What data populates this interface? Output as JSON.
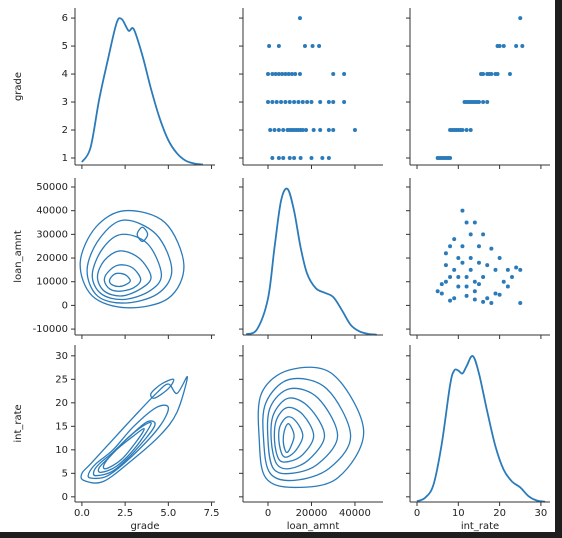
{
  "chart_data": {
    "type": "pairplot",
    "color": "#2b7bba",
    "axes": [
      {
        "label": "grade",
        "xlim": [
          -0.4,
          7.7
        ],
        "xticks": [
          {
            "value": 0,
            "label": "0.0"
          },
          {
            "value": 2.5,
            "label": "2.5"
          },
          {
            "value": 5,
            "label": "5.0"
          },
          {
            "value": 7.5,
            "label": "7.5"
          }
        ],
        "ylim": [
          0.75,
          6.36
        ],
        "yticks": [
          1,
          2,
          3,
          4,
          5,
          6
        ]
      },
      {
        "label": "loan_amnt",
        "xlim": [
          -11500,
          52900
        ],
        "xticks": [
          0,
          20000,
          40000
        ],
        "ylim": [
          -12500,
          53800
        ],
        "yticks": [
          -10000,
          0,
          10000,
          20000,
          30000,
          40000,
          50000
        ]
      },
      {
        "label": "int_rate",
        "xlim": [
          -1.7,
          32.2
        ],
        "xticks": [
          0,
          10,
          20,
          30
        ],
        "ylim": [
          -1.1,
          32.3
        ],
        "yticks": [
          0,
          5,
          10,
          15,
          20,
          25,
          30
        ]
      }
    ],
    "panels": [
      [
        {
          "kind": "kde",
          "x": [
            0,
            0.5,
            1,
            1.5,
            2,
            2.3,
            2.7,
            3,
            3.5,
            4,
            4.5,
            5,
            5.5,
            6,
            6.5,
            7
          ],
          "density": [
            0.02,
            0.12,
            0.45,
            0.72,
            0.97,
            1.0,
            0.92,
            0.93,
            0.75,
            0.52,
            0.32,
            0.17,
            0.08,
            0.03,
            0.01,
            0.003
          ]
        },
        {
          "kind": "scatter",
          "x": [
            14700,
            500,
            5000,
            17000,
            20500,
            23500,
            0,
            2000,
            3500,
            5000,
            6500,
            8000,
            9500,
            11000,
            12500,
            14700,
            30000,
            35000,
            0,
            2000,
            4000,
            6000,
            8000,
            10000,
            12000,
            14000,
            16000,
            18000,
            20000,
            24000,
            28000,
            30000,
            35000,
            1000,
            3000,
            5000,
            7000,
            9000,
            10000,
            11000,
            12000,
            13000,
            14000,
            15000,
            16000,
            17500,
            21000,
            24000,
            28000,
            30000,
            40000,
            2000,
            5000,
            7000,
            10000,
            12000,
            15000,
            20000,
            25000,
            28000
          ],
          "y": [
            6,
            5,
            5,
            5,
            5,
            5,
            4,
            4,
            4,
            4,
            4,
            4,
            4,
            4,
            4,
            4,
            4,
            4,
            3,
            3,
            3,
            3,
            3,
            3,
            3,
            3,
            3,
            3,
            3,
            3,
            3,
            3,
            3,
            2,
            2,
            2,
            2,
            2,
            2,
            2,
            2,
            2,
            2,
            2,
            2,
            2,
            2,
            2,
            2,
            2,
            2,
            1,
            1,
            1,
            1,
            1,
            1,
            1,
            1,
            1
          ]
        },
        {
          "kind": "scatter",
          "x": [
            5,
            5.5,
            6,
            6.5,
            7,
            7.5,
            8,
            8,
            8.5,
            9,
            9.5,
            10,
            10.5,
            11,
            12,
            13,
            11.5,
            12,
            12.5,
            13,
            13.5,
            14,
            14.5,
            15,
            16,
            17,
            15.5,
            16,
            17,
            17.5,
            18,
            19,
            19.5,
            22.5,
            19.5,
            20,
            21,
            24,
            25.5,
            25
          ],
          "y": [
            1,
            1,
            1,
            1,
            1,
            1,
            1,
            2,
            2,
            2,
            2,
            2,
            2,
            2,
            2,
            2,
            3,
            3,
            3,
            3,
            3,
            3,
            3,
            3,
            3,
            3,
            4,
            4,
            4,
            4,
            4,
            4,
            4,
            4,
            5,
            5,
            5,
            5,
            5,
            6
          ]
        }
      ],
      [
        {
          "kind": "contour",
          "levels": [
            {
              "x": [
                5.9,
                4.8,
                2.5,
                0.8,
                -0.1,
                0.6,
                2.6,
                5.0
              ],
              "y": [
                17000,
                35000,
                40000,
                33000,
                18000,
                4000,
                -1000,
                3000
              ]
            },
            {
              "x": [
                5.2,
                4.3,
                2.4,
                1.0,
                0.3,
                0.9,
                2.5,
                4.4
              ],
              "y": [
                15000,
                30000,
                36000,
                28000,
                15000,
                4000,
                1000,
                5000
              ]
            },
            {
              "x": [
                4.6,
                3.8,
                2.3,
                1.2,
                0.6,
                1.1,
                2.4,
                3.9
              ],
              "y": [
                13000,
                26000,
                30000,
                24000,
                13000,
                5000,
                2500,
                6000
              ]
            },
            {
              "x": [
                4.0,
                3.3,
                2.2,
                1.3,
                0.9,
                1.3,
                2.3,
                3.4
              ],
              "y": [
                12000,
                20000,
                23000,
                19000,
                12000,
                6000,
                4000,
                7000
              ]
            },
            {
              "x": [
                3.4,
                2.9,
                2.1,
                1.5,
                1.3,
                1.6,
                2.2,
                3.0
              ],
              "y": [
                11000,
                16000,
                17000,
                14000,
                10500,
                7000,
                6000,
                7500
              ]
            },
            {
              "x": [
                2.8,
                2.5,
                2.0,
                1.7,
                1.6,
                1.8,
                2.2,
                2.6
              ],
              "y": [
                10500,
                13000,
                13500,
                12000,
                10000,
                8500,
                8000,
                9000
              ]
            },
            {
              "x": [
                3.8,
                3.5,
                3.2,
                3.5
              ],
              "y": [
                30000,
                33000,
                30000,
                27000
              ]
            }
          ]
        },
        {
          "kind": "kde",
          "x": [
            -10000,
            -5000,
            0,
            3000,
            6000,
            9000,
            12000,
            15000,
            18000,
            22000,
            26000,
            30000,
            34000,
            38000,
            42000,
            46000,
            50000
          ],
          "density": [
            0.005,
            0.04,
            0.25,
            0.6,
            0.92,
            1.0,
            0.85,
            0.6,
            0.42,
            0.32,
            0.29,
            0.26,
            0.17,
            0.07,
            0.025,
            0.008,
            0.002
          ]
        },
        {
          "kind": "scatter",
          "x": [
            8,
            6,
            7,
            9,
            11,
            12,
            14,
            15,
            13,
            10,
            16,
            18,
            20,
            22,
            24,
            25,
            25,
            17,
            19,
            21,
            10,
            12,
            13,
            14,
            15,
            16,
            11,
            9,
            8,
            7,
            6,
            5,
            9,
            12,
            14,
            16,
            18,
            20,
            22,
            23,
            17,
            19,
            13,
            11,
            10,
            15,
            14,
            12,
            8,
            7
          ],
          "y": [
            2000,
            5000,
            10000,
            28000,
            40000,
            35000,
            35000,
            25000,
            30000,
            20000,
            30000,
            24000,
            20000,
            15000,
            16000,
            15000,
            1000,
            3000,
            5000,
            10000,
            8000,
            12000,
            15000,
            6000,
            9000,
            12000,
            18000,
            15000,
            25000,
            22000,
            9000,
            6000,
            3000,
            4000,
            2500,
            1500,
            1000,
            4500,
            8000,
            12000,
            17000,
            15000,
            20000,
            25000,
            12000,
            18000,
            10000,
            8000,
            12000,
            17000
          ]
        }
      ],
      [
        {
          "kind": "contour",
          "levels": [
            {
              "x": [
                0.1,
                1.2,
                2.8,
                4.5,
                5.5,
                6.1,
                5.5,
                5.0,
                4.3,
                3.0,
                1.5,
                0.5,
                0.0
              ],
              "y": [
                3.5,
                3.2,
                7.5,
                13,
                18,
                25.5,
                22,
                24,
                22,
                17,
                11,
                7,
                5
              ]
            },
            {
              "x": [
                0.5,
                1.5,
                3.0,
                4.5,
                5.0,
                4.3,
                3.0,
                1.8,
                0.8,
                0.4
              ],
              "y": [
                4,
                4.5,
                9,
                15,
                19,
                19,
                15,
                10,
                7,
                5
              ]
            },
            {
              "x": [
                0.8,
                1.8,
                3.0,
                4.2,
                3.8,
                2.8,
                1.8,
                1.0,
                0.7
              ],
              "y": [
                4.5,
                5.5,
                9.5,
                15,
                16,
                13,
                9.5,
                7,
                5.5
              ]
            },
            {
              "x": [
                1.1,
                2.0,
                3.1,
                4.0,
                3.5,
                2.5,
                1.6,
                1.0
              ],
              "y": [
                5.2,
                6.5,
                10.5,
                15.5,
                15,
                12,
                8.5,
                6.2
              ]
            },
            {
              "x": [
                1.4,
                2.3,
                3.2,
                3.6,
                3.0,
                2.0,
                1.3
              ],
              "y": [
                6,
                8,
                12,
                14.5,
                13,
                10,
                7
              ]
            },
            {
              "x": [
                4.2,
                5.0,
                5.3,
                4.6,
                4.0
              ],
              "y": [
                21,
                23,
                25,
                24,
                22
              ]
            }
          ]
        },
        {
          "kind": "contour",
          "levels": [
            {
              "x": [
                44000,
                30000,
                10000,
                -3000,
                -4000,
                -1000,
                12000,
                32000
              ],
              "y": [
                14,
                26,
                27,
                22,
                12,
                4,
                2,
                4
              ]
            },
            {
              "x": [
                38000,
                27000,
                10000,
                -1000,
                -2000,
                1000,
                12000,
                28000
              ],
              "y": [
                13,
                23,
                25,
                20,
                12,
                5,
                3.5,
                6
              ]
            },
            {
              "x": [
                32000,
                23000,
                10000,
                1000,
                0,
                2500,
                11000,
                23000
              ],
              "y": [
                13,
                21,
                23,
                19,
                12,
                6,
                5,
                7
              ]
            },
            {
              "x": [
                26000,
                19000,
                9500,
                2500,
                1500,
                4000,
                10000,
                19000
              ],
              "y": [
                13,
                19,
                21,
                17.5,
                12,
                7,
                6,
                8
              ]
            },
            {
              "x": [
                21000,
                16000,
                9000,
                4000,
                3000,
                5000,
                9500,
                16000
              ],
              "y": [
                13,
                17.5,
                19,
                16.5,
                12,
                8,
                7.5,
                9
              ]
            },
            {
              "x": [
                16000,
                13000,
                9000,
                5500,
                5000,
                6500,
                9000,
                13000
              ],
              "y": [
                13,
                16,
                17,
                15,
                12,
                9,
                8.5,
                10
              ]
            },
            {
              "x": [
                12000,
                10500,
                9000,
                7500,
                7000,
                7800,
                9000,
                10800
              ],
              "y": [
                13,
                15,
                15.5,
                14,
                12,
                10,
                9.5,
                11
              ]
            }
          ]
        },
        {
          "kind": "kde",
          "x": [
            0,
            2,
            4,
            6,
            8,
            9,
            10,
            11,
            12,
            13.5,
            15,
            17,
            19,
            21,
            23,
            25,
            27,
            29,
            31
          ],
          "density": [
            0.005,
            0.03,
            0.12,
            0.4,
            0.8,
            0.9,
            0.9,
            0.88,
            0.93,
            1.0,
            0.88,
            0.62,
            0.38,
            0.22,
            0.14,
            0.1,
            0.04,
            0.01,
            0.002
          ]
        }
      ]
    ]
  }
}
